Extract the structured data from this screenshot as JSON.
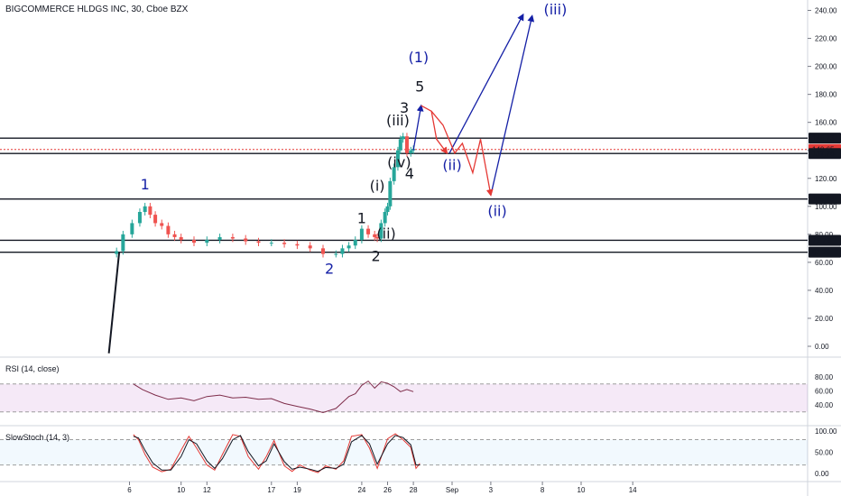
{
  "header": {
    "title": "BIGCOMMERCE HLDGS INC, 30, Cboe BZX"
  },
  "chart_data": [
    {
      "type": "candlestick",
      "title": "BIGCOMMERCE HLDGS INC, 30, Cboe BZX",
      "ylim": [
        -10,
        245
      ],
      "y_ticks": [
        "240.00",
        "220.00",
        "200.00",
        "180.00",
        "160.00",
        "140.00",
        "120.00",
        "100.00",
        "80.00",
        "60.00",
        "40.00",
        "20.00",
        "0.00"
      ],
      "y_tick_values": [
        240,
        220,
        200,
        180,
        160,
        140,
        120,
        100,
        80,
        60,
        40,
        20,
        0
      ],
      "x_ticks": [
        "6",
        "10",
        "12",
        "17",
        "19",
        "24",
        "26",
        "28",
        "Sep",
        "3",
        "8",
        "10",
        "14"
      ],
      "x_tick_days": [
        6,
        10,
        12,
        17,
        19,
        24,
        26,
        28,
        31,
        34,
        38,
        41,
        45
      ],
      "price_x_days": [
        5.0,
        5.5,
        6.2,
        6.8,
        7.2,
        7.6,
        8.0,
        8.5,
        9.0,
        9.5,
        10.0,
        11.0,
        12.0,
        13.0,
        14.0,
        15.0,
        16.0,
        17.0,
        18.0,
        19.0,
        20.0,
        21.0,
        22.0,
        22.5,
        23.0,
        23.5,
        24.0,
        24.5,
        25.0,
        25.2,
        25.5,
        25.8,
        26.0,
        26.2,
        26.5,
        26.8,
        27.0,
        27.2,
        27.5,
        27.8,
        28.0
      ],
      "price_close": [
        68,
        80,
        88,
        96,
        100,
        94,
        88,
        86,
        80,
        78,
        76,
        74,
        76,
        78,
        77,
        75,
        74,
        74,
        73,
        72,
        70,
        66,
        66,
        70,
        72,
        76,
        84,
        80,
        78,
        77,
        88,
        96,
        100,
        118,
        128,
        140,
        148,
        150,
        138,
        140,
        141
      ],
      "horizontal_levels": [
        {
          "value": 148.73,
          "label": "148.73",
          "color": "#131722"
        },
        {
          "value": 140.65,
          "label": "140.65",
          "color": "#e53935"
        },
        {
          "value": 137.76,
          "label": "137.76",
          "color": "#131722"
        },
        {
          "value": 105.23,
          "label": "105.23",
          "color": "#131722"
        },
        {
          "value": 75.73,
          "label": "75.73",
          "color": "#131722"
        },
        {
          "value": 67.23,
          "label": "67.23",
          "color": "#131722"
        }
      ],
      "trendline": {
        "from": [
          4.4,
          -5
        ],
        "to": [
          5.2,
          67
        ]
      },
      "wave_labels": [
        {
          "text": "1",
          "day": 7.2,
          "price": 112,
          "color": "#1520a6"
        },
        {
          "text": "2",
          "day": 21.5,
          "price": 52,
          "color": "#1520a6"
        },
        {
          "text": "1",
          "day": 24.0,
          "price": 88,
          "color": "#131722"
        },
        {
          "text": "2",
          "day": 25.1,
          "price": 61,
          "color": "#131722"
        },
        {
          "text": "(i)",
          "day": 25.2,
          "price": 111,
          "color": "#131722"
        },
        {
          "text": "(ii)",
          "day": 25.9,
          "price": 77,
          "color": "#131722"
        },
        {
          "text": "(iii)",
          "day": 26.8,
          "price": 158,
          "color": "#131722"
        },
        {
          "text": "3",
          "day": 27.3,
          "price": 167,
          "color": "#131722"
        },
        {
          "text": "(iv)",
          "day": 26.9,
          "price": 128,
          "color": "#131722"
        },
        {
          "text": "4",
          "day": 27.7,
          "price": 120,
          "color": "#131722"
        },
        {
          "text": "(1)",
          "day": 28.4,
          "price": 203,
          "color": "#1520a6"
        },
        {
          "text": "5",
          "day": 28.5,
          "price": 182,
          "color": "#131722"
        },
        {
          "text": "(ii)",
          "day": 31.0,
          "price": 126,
          "color": "#1520a6"
        },
        {
          "text": "(ii)",
          "day": 34.5,
          "price": 93,
          "color": "#1520a6"
        },
        {
          "text": "(iii)",
          "day": 39.0,
          "price": 237,
          "color": "#1520a6"
        }
      ],
      "projection_blue": [
        {
          "points": [
            [
              28.0,
              140
            ],
            [
              28.6,
              172
            ]
          ]
        },
        {
          "points": [
            [
              30.8,
              138
            ],
            [
              36.5,
              237
            ]
          ]
        },
        {
          "points": [
            [
              34.0,
              108
            ],
            [
              37.2,
              236
            ]
          ]
        }
      ],
      "projection_red": [
        {
          "points": [
            [
              28.6,
              172
            ],
            [
              29.4,
              168
            ],
            [
              29.8,
              148
            ],
            [
              30.6,
              138
            ]
          ]
        },
        {
          "points": [
            [
              29.4,
              168
            ],
            [
              30.3,
              158
            ],
            [
              31.2,
              138
            ],
            [
              31.8,
              145
            ],
            [
              32.6,
              124
            ],
            [
              33.2,
              148
            ],
            [
              34.0,
              108
            ]
          ]
        }
      ]
    },
    {
      "type": "line",
      "title": "RSI (14, close)",
      "ylim": [
        20,
        100
      ],
      "y_ticks": [
        "80.00",
        "60.00",
        "40.00"
      ],
      "y_tick_values": [
        80,
        60,
        40
      ],
      "band": [
        30,
        70
      ],
      "x": [
        6.3,
        7,
        8,
        9,
        10,
        11,
        12,
        13,
        14,
        15,
        16,
        17,
        18,
        19,
        20,
        21,
        22,
        23,
        23.5,
        24,
        24.5,
        25,
        25.5,
        26,
        26.5,
        27,
        27.5,
        28
      ],
      "values": [
        70,
        62,
        54,
        48,
        50,
        46,
        52,
        54,
        50,
        51,
        48,
        49,
        42,
        38,
        34,
        29,
        35,
        52,
        56,
        68,
        74,
        64,
        73,
        71,
        66,
        59,
        62,
        59
      ]
    },
    {
      "type": "line",
      "title": "SlowStoch (14, 3)",
      "ylim": [
        -10,
        110
      ],
      "y_ticks": [
        "100.00",
        "50.00",
        "0.00"
      ],
      "y_tick_values": [
        100,
        50,
        0
      ],
      "band": [
        20,
        80
      ],
      "x": [
        6.3,
        6.7,
        7.2,
        7.8,
        8.5,
        9.2,
        10,
        10.6,
        11.2,
        12,
        12.6,
        13.2,
        14,
        14.6,
        15.2,
        16,
        16.6,
        17.2,
        18,
        18.6,
        19.2,
        20,
        20.6,
        21.2,
        22,
        22.6,
        23.2,
        24,
        24.6,
        25.2,
        26,
        26.6,
        27.2,
        27.8,
        28.2,
        28.5
      ],
      "series": [
        {
          "values": [
            92,
            80,
            45,
            15,
            4,
            10,
            55,
            88,
            60,
            20,
            8,
            45,
            92,
            88,
            40,
            10,
            40,
            78,
            18,
            5,
            20,
            8,
            2,
            18,
            10,
            30,
            88,
            92,
            60,
            12,
            82,
            94,
            80,
            62,
            12,
            24
          ],
          "color": "#e53935"
        },
        {
          "values": [
            88,
            84,
            55,
            25,
            8,
            8,
            40,
            80,
            70,
            30,
            12,
            35,
            80,
            90,
            52,
            18,
            30,
            70,
            28,
            10,
            15,
            10,
            5,
            14,
            12,
            22,
            75,
            90,
            70,
            22,
            70,
            90,
            85,
            68,
            20,
            20
          ],
          "color": "#131722"
        }
      ]
    }
  ]
}
